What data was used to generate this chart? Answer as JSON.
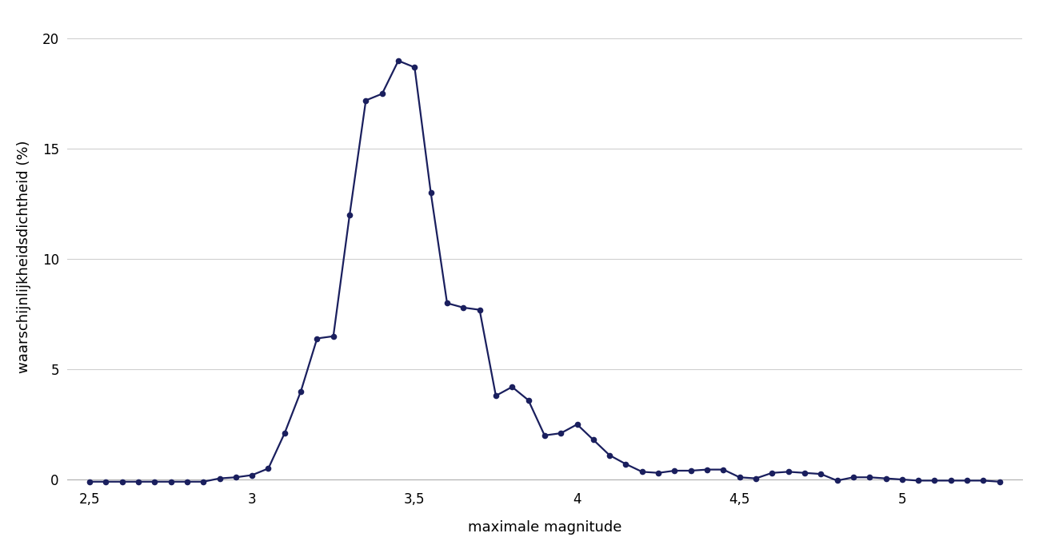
{
  "x": [
    2.5,
    2.55,
    2.6,
    2.65,
    2.7,
    2.75,
    2.8,
    2.85,
    2.9,
    2.95,
    3.0,
    3.05,
    3.1,
    3.15,
    3.2,
    3.25,
    3.3,
    3.35,
    3.4,
    3.45,
    3.5,
    3.55,
    3.6,
    3.65,
    3.7,
    3.75,
    3.8,
    3.85,
    3.9,
    3.95,
    4.0,
    4.05,
    4.1,
    4.15,
    4.2,
    4.25,
    4.3,
    4.35,
    4.4,
    4.45,
    4.5,
    4.55,
    4.6,
    4.65,
    4.7,
    4.75,
    4.8,
    4.85,
    4.9,
    4.95,
    5.0,
    5.05,
    5.1,
    5.15,
    5.2,
    5.25,
    5.3
  ],
  "y": [
    -0.1,
    -0.1,
    -0.1,
    -0.1,
    -0.1,
    -0.1,
    -0.1,
    -0.1,
    0.05,
    0.1,
    0.2,
    0.5,
    2.1,
    4.0,
    6.4,
    6.5,
    12.0,
    17.2,
    17.5,
    19.0,
    18.7,
    13.0,
    8.0,
    7.8,
    7.7,
    3.8,
    4.2,
    3.6,
    2.0,
    2.1,
    2.5,
    1.8,
    1.1,
    0.7,
    0.35,
    0.3,
    0.4,
    0.4,
    0.45,
    0.45,
    0.1,
    0.05,
    0.3,
    0.35,
    0.3,
    0.25,
    -0.05,
    0.1,
    0.1,
    0.05,
    0.0,
    -0.05,
    -0.05,
    -0.05,
    -0.05,
    -0.05,
    -0.1
  ],
  "line_color": "#1a1f5e",
  "marker_color": "#1a1f5e",
  "marker_size": 5.5,
  "line_width": 1.6,
  "xlabel": "maximale magnitude",
  "ylabel": "waarschijnlijkheidsdichtheid (%)",
  "xlim": [
    2.43,
    5.37
  ],
  "ylim": [
    -0.8,
    21.0
  ],
  "xticks": [
    2.5,
    3.0,
    3.5,
    4.0,
    4.5,
    5.0
  ],
  "xtick_labels": [
    "2,5",
    "3",
    "3,5",
    "4",
    "4,5",
    "5"
  ],
  "yticks": [
    0,
    5,
    10,
    15,
    20
  ],
  "ytick_labels": [
    "0",
    "5",
    "10",
    "15",
    "20"
  ],
  "background_color": "#ffffff",
  "grid_color": "#d0d0d0",
  "xlabel_fontsize": 13,
  "ylabel_fontsize": 13,
  "tick_fontsize": 12
}
